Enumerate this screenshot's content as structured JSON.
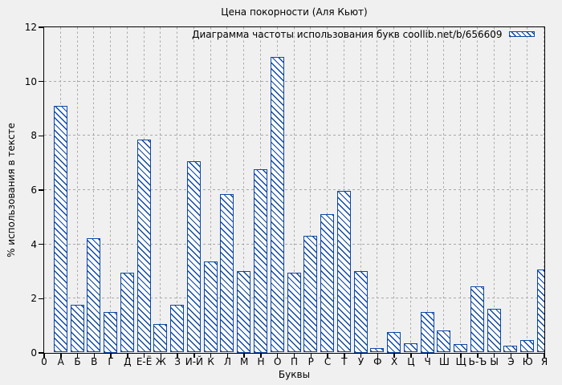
{
  "chart_data": {
    "type": "bar",
    "title": "Цена покорности (Аля Кьют)",
    "legend": "Диаграмма частоты использования букв coollib.net/b/656609",
    "legend_position": "top-right",
    "xlabel": "Буквы",
    "ylabel": "% использования в тексте",
    "origin_tick_label": "0",
    "categories": [
      "А",
      "Б",
      "В",
      "Г",
      "Д",
      "Е-Ё",
      "Ж",
      "З",
      "И-Й",
      "К",
      "Л",
      "М",
      "Н",
      "О",
      "П",
      "Р",
      "С",
      "Т",
      "У",
      "Ф",
      "Х",
      "Ц",
      "Ч",
      "Ш",
      "Щ",
      "Ь-Ъ",
      "Ы",
      "Э",
      "Ю",
      "Я"
    ],
    "values": [
      9.1,
      1.75,
      4.2,
      1.5,
      2.95,
      7.85,
      1.05,
      1.75,
      7.05,
      3.35,
      5.85,
      3.0,
      6.75,
      10.9,
      2.95,
      4.3,
      5.1,
      5.95,
      3.0,
      0.15,
      0.75,
      0.35,
      1.5,
      0.8,
      0.3,
      2.45,
      1.6,
      0.25,
      0.45,
      3.05
    ],
    "ylim": [
      0,
      12
    ],
    "yticks": [
      0,
      2,
      4,
      6,
      8,
      10,
      12
    ],
    "grid": true,
    "bar_style": "diagonal-hatch",
    "colors": {
      "bar_border": "#0d47a5",
      "bar_fill": "#fdfdfd",
      "background": "#f0f0f0",
      "grid": "#a8a8a8",
      "axis": "#000000",
      "text": "#000000"
    }
  }
}
